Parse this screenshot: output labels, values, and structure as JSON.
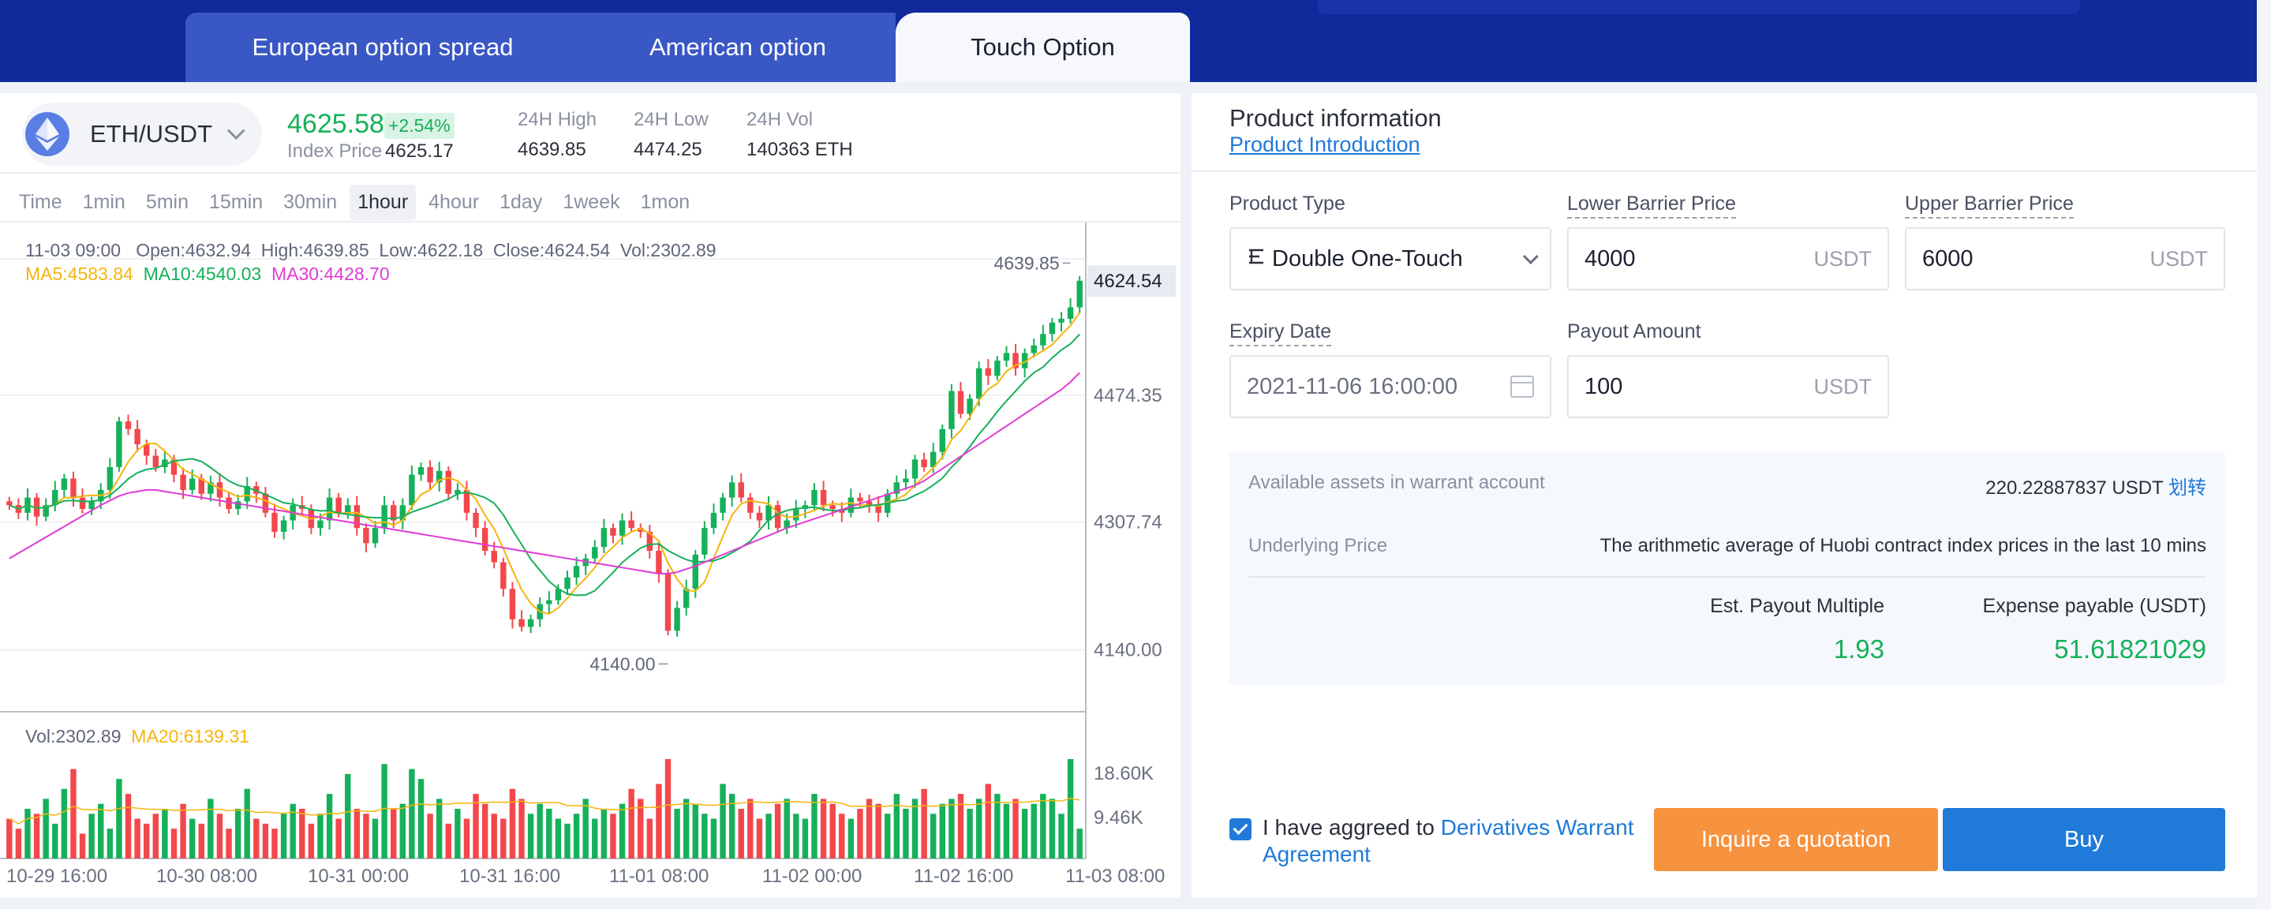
{
  "tabs": [
    "European option spread",
    "American option",
    "Touch Option"
  ],
  "active_tab": "Touch Option",
  "market": {
    "pair": "ETH/USDT",
    "last_price": "4625.58",
    "change_pct": "+2.54%",
    "index_label": "Index Price",
    "index_price": "4625.17",
    "stats": [
      {
        "label": "24H High",
        "value": "4639.85"
      },
      {
        "label": "24H Low",
        "value": "4474.25"
      },
      {
        "label": "24H Vol",
        "value": "140363 ETH"
      }
    ]
  },
  "intervals": [
    "Time",
    "1min",
    "5min",
    "15min",
    "30min",
    "1hour",
    "4hour",
    "1day",
    "1week",
    "1mon"
  ],
  "active_interval": "1hour",
  "candle_info": "11-03 09:00   Open:4632.94  High:4639.85  Low:4622.18  Close:4624.54  Vol:2302.89",
  "ma_info": {
    "ma5": "MA5:4583.84",
    "ma10": "MA10:4540.03",
    "ma30": "MA30:4428.70"
  },
  "vol_info": {
    "vol": "Vol:2302.89",
    "ma20": "MA20:6139.31"
  },
  "colors": {
    "up": "#16b05a",
    "down": "#f2484c",
    "ma5": "#f5b50f",
    "ma10": "#16b05a",
    "ma30": "#e03bd3",
    "accent": "#1f7ad9",
    "orange": "#f7923f",
    "band": "#102a9c"
  },
  "chart_data": {
    "type": "candlestick",
    "y_ticks": [
      "4474.35",
      "4307.74",
      "4140.00"
    ],
    "y_top_partial": "4639.85",
    "current_price_label": "4624.54",
    "high_marker": "4639.85",
    "low_marker": "4140.00",
    "x_ticks": [
      "10-29 16:00",
      "10-30 08:00",
      "10-31 00:00",
      "10-31 16:00",
      "11-01 08:00",
      "11-02 00:00",
      "11-02 16:00",
      "11-03 08:00"
    ],
    "vol_ticks": [
      "18.60K",
      "9.46K"
    ],
    "ylim": [
      4100,
      4660
    ],
    "close": [
      4330,
      4320,
      4340,
      4315,
      4330,
      4350,
      4365,
      4340,
      4325,
      4335,
      4350,
      4380,
      4440,
      4430,
      4410,
      4395,
      4380,
      4390,
      4370,
      4350,
      4365,
      4345,
      4360,
      4340,
      4325,
      4335,
      4355,
      4345,
      4320,
      4295,
      4310,
      4330,
      4325,
      4300,
      4310,
      4340,
      4320,
      4330,
      4300,
      4280,
      4300,
      4330,
      4310,
      4330,
      4370,
      4380,
      4360,
      4375,
      4345,
      4350,
      4320,
      4300,
      4270,
      4255,
      4220,
      4180,
      4170,
      4180,
      4200,
      4205,
      4220,
      4235,
      4250,
      4260,
      4275,
      4300,
      4290,
      4310,
      4300,
      4295,
      4270,
      4240,
      4165,
      4195,
      4220,
      4265,
      4300,
      4320,
      4340,
      4360,
      4340,
      4320,
      4310,
      4330,
      4300,
      4310,
      4325,
      4330,
      4350,
      4330,
      4325,
      4320,
      4340,
      4335,
      4330,
      4320,
      4345,
      4360,
      4365,
      4390,
      4380,
      4400,
      4430,
      4480,
      4450,
      4470,
      4510,
      4500,
      4520,
      4530,
      4510,
      4530,
      4540,
      4555,
      4570,
      4575,
      4590,
      4625
    ],
    "ma30": [
      4260,
      4267,
      4274,
      4281,
      4288,
      4295,
      4302,
      4309,
      4316,
      4323,
      4330,
      4336,
      4342,
      4346,
      4348,
      4350,
      4350,
      4348,
      4346,
      4344,
      4342,
      4340,
      4338,
      4336,
      4334,
      4332,
      4330,
      4328,
      4326,
      4324,
      4322,
      4320,
      4318,
      4316,
      4314,
      4312,
      4310,
      4308,
      4306,
      4304,
      4302,
      4300,
      4298,
      4296,
      4294,
      4292,
      4290,
      4288,
      4286,
      4284,
      4282,
      4280,
      4278,
      4276,
      4274,
      4272,
      4270,
      4268,
      4266,
      4264,
      4262,
      4260,
      4258,
      4256,
      4254,
      4252,
      4250,
      4248,
      4246,
      4244,
      4242,
      4240,
      4240,
      4242,
      4246,
      4250,
      4255,
      4260,
      4265,
      4270,
      4275,
      4280,
      4285,
      4290,
      4295,
      4300,
      4304,
      4308,
      4312,
      4316,
      4320,
      4324,
      4328,
      4332,
      4336,
      4340,
      4344,
      4348,
      4352,
      4356,
      4362,
      4370,
      4378,
      4386,
      4394,
      4402,
      4410,
      4418,
      4426,
      4434,
      4442,
      4450,
      4458,
      4466,
      4474,
      4482,
      4492,
      4504
    ],
    "volume": [
      8,
      6,
      10,
      9,
      12,
      7,
      14,
      18,
      5,
      9,
      11,
      6,
      16,
      13,
      8,
      7,
      9,
      10,
      6,
      11,
      8,
      7,
      12,
      9,
      6,
      10,
      14,
      8,
      7,
      6,
      9,
      11,
      10,
      7,
      9,
      13,
      8,
      17,
      10,
      9,
      8,
      19,
      10,
      11,
      18,
      16,
      9,
      12,
      7,
      10,
      8,
      13,
      11,
      9,
      8,
      14,
      12,
      9,
      11,
      10,
      8,
      7,
      9,
      12,
      8,
      10,
      9,
      11,
      14,
      12,
      8,
      15,
      20,
      10,
      12,
      11,
      9,
      8,
      15,
      13,
      10,
      12,
      8,
      9,
      11,
      12,
      9,
      8,
      13,
      12,
      11,
      9,
      8,
      10,
      12,
      11,
      9,
      13,
      10,
      12,
      14,
      9,
      11,
      12,
      13,
      10,
      12,
      15,
      13,
      11,
      12,
      10,
      11,
      13,
      12,
      9,
      20,
      6
    ]
  },
  "product": {
    "title": "Product information",
    "intro_link": "Product Introduction",
    "type_label": "Product Type",
    "type_value": "Double One-Touch",
    "lower_label": "Lower Barrier Price",
    "lower_value": "4000",
    "upper_label": "Upper Barrier Price",
    "upper_value": "6000",
    "unit": "USDT",
    "expiry_label": "Expiry Date",
    "expiry_value": "2021-11-06 16:00:00",
    "payout_label": "Payout Amount",
    "payout_value": "100"
  },
  "summary": {
    "assets_label": "Available assets in warrant account",
    "assets_value": "220.22887837 USDT",
    "transfer_link": "划转",
    "underlying_label": "Underlying Price",
    "underlying_value": "The arithmetic average of Huobi contract index prices in the last 10 mins",
    "multiple_label": "Est. Payout Multiple",
    "multiple_value": "1.93",
    "expense_label": "Expense payable (USDT)",
    "expense_value": "51.61821029"
  },
  "agreement": {
    "text": "I have aggreed to ",
    "link": "Derivatives Warrant Agreement"
  },
  "buttons": {
    "quote": "Inquire a quotation",
    "buy": "Buy"
  }
}
